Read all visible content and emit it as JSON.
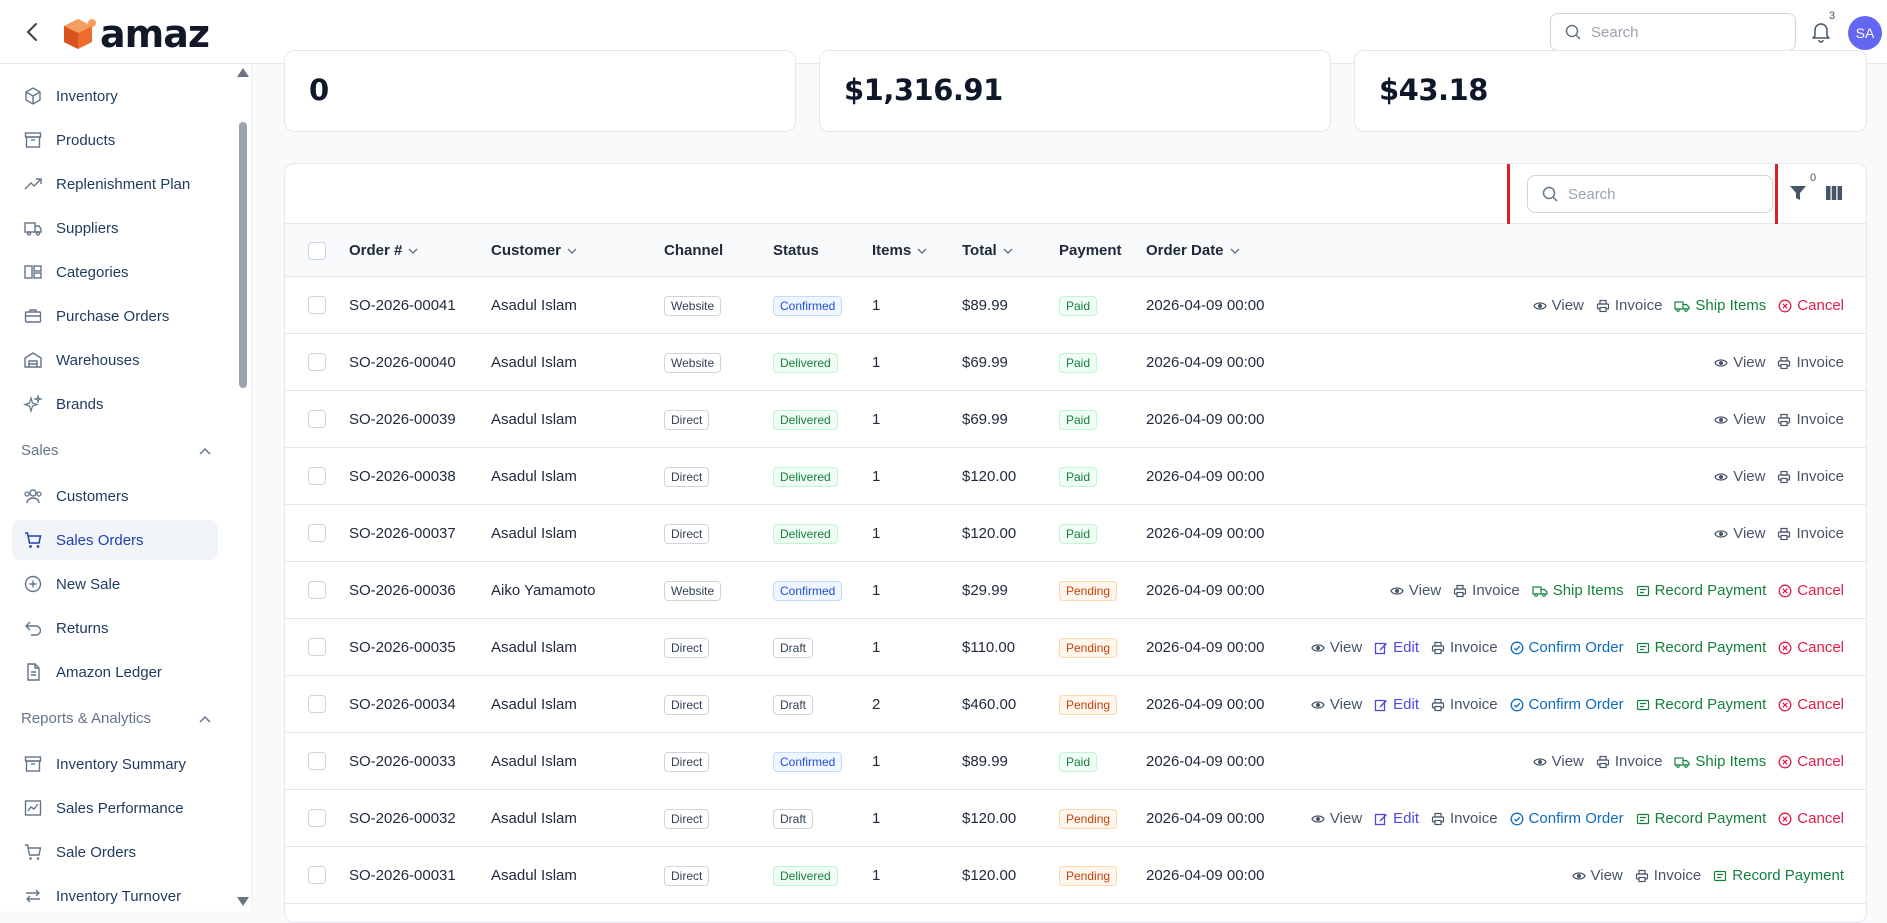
{
  "header": {
    "logo_text": "amaz",
    "search_placeholder": "Search",
    "notification_count": "3",
    "avatar_initials": "SA"
  },
  "sidebar": {
    "items_top": [
      {
        "label": "Inventory",
        "icon": "box-icon"
      },
      {
        "label": "Products",
        "icon": "archive-icon"
      },
      {
        "label": "Replenishment Plan",
        "icon": "trending-up-icon"
      },
      {
        "label": "Suppliers",
        "icon": "truck-icon"
      },
      {
        "label": "Categories",
        "icon": "layout-icon"
      },
      {
        "label": "Purchase Orders",
        "icon": "briefcase-icon"
      },
      {
        "label": "Warehouses",
        "icon": "warehouse-icon"
      },
      {
        "label": "Brands",
        "icon": "sparkles-icon"
      }
    ],
    "section_sales": "Sales",
    "items_sales": [
      {
        "label": "Customers",
        "icon": "users-icon"
      },
      {
        "label": "Sales Orders",
        "icon": "cart-icon"
      },
      {
        "label": "New Sale",
        "icon": "plus-circle-icon"
      },
      {
        "label": "Returns",
        "icon": "return-icon"
      },
      {
        "label": "Amazon Ledger",
        "icon": "file-icon"
      }
    ],
    "section_reports": "Reports & Analytics",
    "items_reports": [
      {
        "label": "Inventory Summary",
        "icon": "archive-icon"
      },
      {
        "label": "Sales Performance",
        "icon": "chart-icon"
      },
      {
        "label": "Sale Orders",
        "icon": "cart-icon"
      },
      {
        "label": "Inventory Turnover",
        "icon": "arrows-icon"
      }
    ]
  },
  "stats": {
    "card1_value": "0",
    "card2_value": "$1,316.91",
    "card3_value": "$43.18"
  },
  "table": {
    "search_placeholder": "Search",
    "filter_count": "0",
    "columns": {
      "order": "Order #",
      "customer": "Customer",
      "channel": "Channel",
      "status": "Status",
      "items": "Items",
      "total": "Total",
      "payment": "Payment",
      "date": "Order Date"
    },
    "action_labels": {
      "view": "View",
      "edit": "Edit",
      "invoice": "Invoice",
      "confirm": "Confirm Order",
      "ship": "Ship Items",
      "record": "Record Payment",
      "cancel": "Cancel"
    },
    "rows": [
      {
        "order": "SO-2026-00041",
        "customer": "Asadul Islam",
        "channel": "Website",
        "status": "Confirmed",
        "items": "1",
        "total": "$89.99",
        "payment": "Paid",
        "date": "2026-04-09 00:00",
        "actions": [
          "view",
          "invoice",
          "ship",
          "cancel"
        ]
      },
      {
        "order": "SO-2026-00040",
        "customer": "Asadul Islam",
        "channel": "Website",
        "status": "Delivered",
        "items": "1",
        "total": "$69.99",
        "payment": "Paid",
        "date": "2026-04-09 00:00",
        "actions": [
          "view",
          "invoice"
        ]
      },
      {
        "order": "SO-2026-00039",
        "customer": "Asadul Islam",
        "channel": "Direct",
        "status": "Delivered",
        "items": "1",
        "total": "$69.99",
        "payment": "Paid",
        "date": "2026-04-09 00:00",
        "actions": [
          "view",
          "invoice"
        ]
      },
      {
        "order": "SO-2026-00038",
        "customer": "Asadul Islam",
        "channel": "Direct",
        "status": "Delivered",
        "items": "1",
        "total": "$120.00",
        "payment": "Paid",
        "date": "2026-04-09 00:00",
        "actions": [
          "view",
          "invoice"
        ]
      },
      {
        "order": "SO-2026-00037",
        "customer": "Asadul Islam",
        "channel": "Direct",
        "status": "Delivered",
        "items": "1",
        "total": "$120.00",
        "payment": "Paid",
        "date": "2026-04-09 00:00",
        "actions": [
          "view",
          "invoice"
        ]
      },
      {
        "order": "SO-2026-00036",
        "customer": "Aiko Yamamoto",
        "channel": "Website",
        "status": "Confirmed",
        "items": "1",
        "total": "$29.99",
        "payment": "Pending",
        "date": "2026-04-09 00:00",
        "actions": [
          "view",
          "invoice",
          "ship",
          "record",
          "cancel"
        ]
      },
      {
        "order": "SO-2026-00035",
        "customer": "Asadul Islam",
        "channel": "Direct",
        "status": "Draft",
        "items": "1",
        "total": "$110.00",
        "payment": "Pending",
        "date": "2026-04-09 00:00",
        "actions": [
          "view",
          "edit",
          "invoice",
          "confirm",
          "record",
          "cancel"
        ]
      },
      {
        "order": "SO-2026-00034",
        "customer": "Asadul Islam",
        "channel": "Direct",
        "status": "Draft",
        "items": "2",
        "total": "$460.00",
        "payment": "Pending",
        "date": "2026-04-09 00:00",
        "actions": [
          "view",
          "edit",
          "invoice",
          "confirm",
          "record",
          "cancel"
        ]
      },
      {
        "order": "SO-2026-00033",
        "customer": "Asadul Islam",
        "channel": "Direct",
        "status": "Confirmed",
        "items": "1",
        "total": "$89.99",
        "payment": "Paid",
        "date": "2026-04-09 00:00",
        "actions": [
          "view",
          "invoice",
          "ship",
          "cancel"
        ]
      },
      {
        "order": "SO-2026-00032",
        "customer": "Asadul Islam",
        "channel": "Direct",
        "status": "Draft",
        "items": "1",
        "total": "$120.00",
        "payment": "Pending",
        "date": "2026-04-09 00:00",
        "actions": [
          "view",
          "edit",
          "invoice",
          "confirm",
          "record",
          "cancel"
        ]
      },
      {
        "order": "SO-2026-00031",
        "customer": "Asadul Islam",
        "channel": "Direct",
        "status": "Delivered",
        "items": "1",
        "total": "$120.00",
        "payment": "Pending",
        "date": "2026-04-09 00:00",
        "actions": [
          "view",
          "invoice",
          "record"
        ]
      }
    ]
  }
}
